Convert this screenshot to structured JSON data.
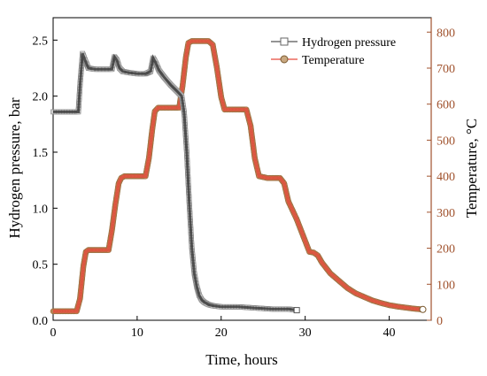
{
  "chart_data": {
    "type": "line",
    "xlabel": "Time, hours",
    "ylabel": "Hydrogen pressure, bar",
    "y2label": "Temperature, °C",
    "xlim": [
      0,
      45
    ],
    "ylim": [
      0,
      2.7
    ],
    "y2lim": [
      0,
      840
    ],
    "xticks": [
      0,
      10,
      20,
      30,
      40
    ],
    "yticks": [
      0.0,
      0.5,
      1.0,
      1.5,
      2.0,
      2.5
    ],
    "y2ticks": [
      0,
      100,
      200,
      300,
      400,
      500,
      600,
      700,
      800
    ],
    "legend_position": "top-right",
    "colors": {
      "pressure_line": "#3a3a3a",
      "pressure_marker": "#8a8a8a",
      "temperature_line": "#e84a3c",
      "temperature_marker": "#9a7040",
      "right_axis": "#a0522d"
    },
    "series": [
      {
        "name": "Hydrogen pressure",
        "axis": "left",
        "x": [
          0,
          3.0,
          3.2,
          3.5,
          3.8,
          4.2,
          5.0,
          6.0,
          7.0,
          7.3,
          7.6,
          7.9,
          8.3,
          9.0,
          10.0,
          11.0,
          11.6,
          11.9,
          12.2,
          12.6,
          13.2,
          14.0,
          14.8,
          15.3,
          15.6,
          15.9,
          16.2,
          16.5,
          16.8,
          17.1,
          17.4,
          17.7,
          18.0,
          18.5,
          19.0,
          20.0,
          22.0,
          24.0,
          26.0,
          28.0,
          29.0
        ],
        "y": [
          1.86,
          1.86,
          2.1,
          2.38,
          2.32,
          2.25,
          2.24,
          2.24,
          2.24,
          2.35,
          2.32,
          2.25,
          2.22,
          2.21,
          2.2,
          2.2,
          2.22,
          2.34,
          2.3,
          2.23,
          2.17,
          2.1,
          2.04,
          2.0,
          1.85,
          1.5,
          1.05,
          0.65,
          0.42,
          0.3,
          0.22,
          0.18,
          0.16,
          0.14,
          0.13,
          0.12,
          0.12,
          0.11,
          0.1,
          0.1,
          0.09
        ]
      },
      {
        "name": "Temperature",
        "axis": "right",
        "x": [
          0,
          2.8,
          3.2,
          3.6,
          3.9,
          4.2,
          5.0,
          6.0,
          6.6,
          7.0,
          7.4,
          7.8,
          8.1,
          8.5,
          9.5,
          10.5,
          11.0,
          11.4,
          11.8,
          12.1,
          12.5,
          13.5,
          14.5,
          15.0,
          15.4,
          15.8,
          16.1,
          16.5,
          17.5,
          18.5,
          19.0,
          19.5,
          20.0,
          20.4,
          21.5,
          22.5,
          23.0,
          23.5,
          24.0,
          24.5,
          25.5,
          26.5,
          27.0,
          27.5,
          28.0,
          29.0,
          30.0,
          30.5,
          31.0,
          31.5,
          32.0,
          33.0,
          34.0,
          35.0,
          36.0,
          37.0,
          38.0,
          39.0,
          40.0,
          41.0,
          42.0,
          43.0,
          44.0
        ],
        "y": [
          25,
          25,
          60,
          150,
          190,
          195,
          195,
          195,
          195,
          250,
          320,
          380,
          395,
          400,
          400,
          400,
          400,
          450,
          530,
          580,
          590,
          590,
          590,
          590,
          650,
          730,
          770,
          775,
          775,
          775,
          765,
          700,
          620,
          585,
          585,
          585,
          585,
          540,
          450,
          400,
          395,
          395,
          395,
          380,
          330,
          280,
          220,
          190,
          188,
          180,
          160,
          130,
          110,
          90,
          75,
          65,
          55,
          48,
          42,
          38,
          35,
          32,
          30
        ]
      }
    ]
  }
}
